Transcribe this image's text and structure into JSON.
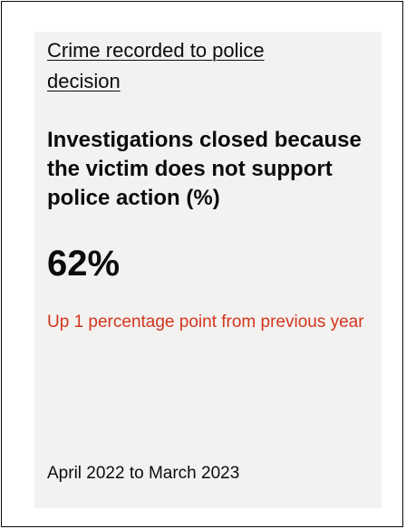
{
  "card": {
    "category_link": "Crime recorded to police decision",
    "metric_title": "Investigations closed because the victim does not support police action (%)",
    "metric_value": "62%",
    "change_text": "Up 1 percentage point from previous year",
    "period": "April 2022 to March 2023"
  },
  "colors": {
    "card_background": "#f3f2f1",
    "text": "#0b0c0c",
    "change_text": "#d4351c"
  }
}
